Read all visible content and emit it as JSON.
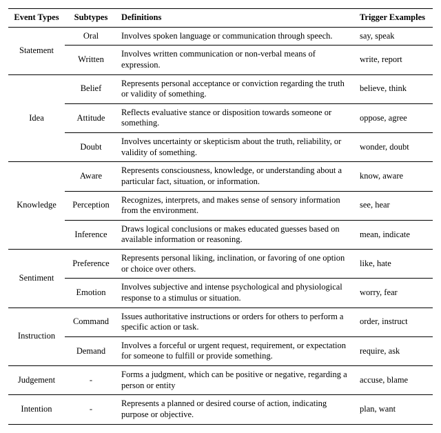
{
  "headers": {
    "type": "Event Types",
    "sub": "Subtypes",
    "def": "Definitions",
    "trig": "Trigger Examples"
  },
  "groups": [
    {
      "type": "Statement",
      "rows": [
        {
          "sub": "Oral",
          "def": "Involves spoken language or communication through speech.",
          "trig": "say, speak"
        },
        {
          "sub": "Written",
          "def": "Involves written communication or non-verbal means of expression.",
          "trig": "write, report"
        }
      ]
    },
    {
      "type": "Idea",
      "rows": [
        {
          "sub": "Belief",
          "def": "Represents personal acceptance or conviction regarding the truth or validity of something.",
          "trig": "believe, think"
        },
        {
          "sub": "Attitude",
          "def": "Reflects evaluative stance or disposition towards someone or something.",
          "trig": "oppose, agree"
        },
        {
          "sub": "Doubt",
          "def": "Involves uncertainty or skepticism about the truth, reliability, or validity of something.",
          "trig": "wonder, doubt"
        }
      ]
    },
    {
      "type": "Knowledge",
      "rows": [
        {
          "sub": "Aware",
          "def": "Represents consciousness, knowledge, or understanding about a particular fact, situation, or information.",
          "trig": "know, aware"
        },
        {
          "sub": "Perception",
          "def": "Recognizes, interprets, and makes sense of sensory information from the environment.",
          "trig": "see, hear"
        },
        {
          "sub": "Inference",
          "def": "Draws logical conclusions or makes educated guesses based on available information or reasoning.",
          "trig": "mean, indicate"
        }
      ]
    },
    {
      "type": "Sentiment",
      "rows": [
        {
          "sub": "Preference",
          "def": "Represents personal liking, inclination, or favoring of one option or choice over others.",
          "trig": "like, hate"
        },
        {
          "sub": "Emotion",
          "def": "Involves subjective and intense psychological and physiological response to a stimulus or situation.",
          "trig": "worry, fear"
        }
      ]
    },
    {
      "type": "Instruction",
      "rows": [
        {
          "sub": "Command",
          "def": "Issues authoritative instructions or orders for others to perform a specific action or task.",
          "trig": "order, instruct"
        },
        {
          "sub": "Demand",
          "def": "Involves a forceful or urgent request, requirement, or expectation for someone to fulfill or provide something.",
          "trig": "require, ask"
        }
      ]
    },
    {
      "type": "Judgement",
      "rows": [
        {
          "sub": "-",
          "def": "Forms a judgment, which can be positive or negative, regarding a person or entity",
          "trig": "accuse, blame"
        }
      ]
    },
    {
      "type": "Intention",
      "rows": [
        {
          "sub": "-",
          "def": "Represents a planned or desired course of action, indicating purpose or objective.",
          "trig": "plan, want"
        }
      ]
    }
  ]
}
